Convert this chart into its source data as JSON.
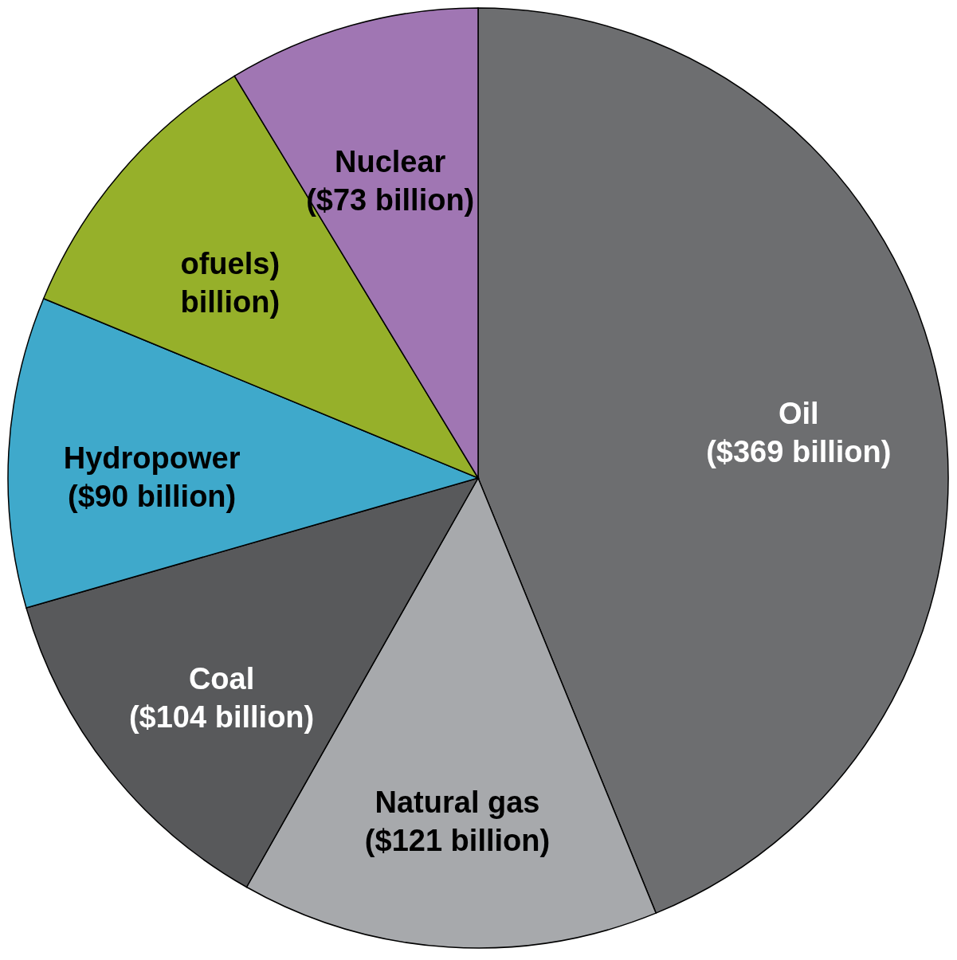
{
  "chart_data": {
    "type": "pie",
    "categories": [
      "Oil",
      "Natural gas",
      "Coal",
      "Hydropower",
      "ofuels)",
      "Nuclear"
    ],
    "values": [
      369,
      121,
      104,
      90,
      85,
      73
    ],
    "value_labels": [
      "($369 billion)",
      "($121 billion)",
      "($104 billion)",
      "($90 billion)",
      "billion)",
      "($73 billion)"
    ],
    "colors": [
      "#6d6e70",
      "#a7a9ac",
      "#58595b",
      "#3fa9cb",
      "#96b02a",
      "#a076b3"
    ]
  }
}
